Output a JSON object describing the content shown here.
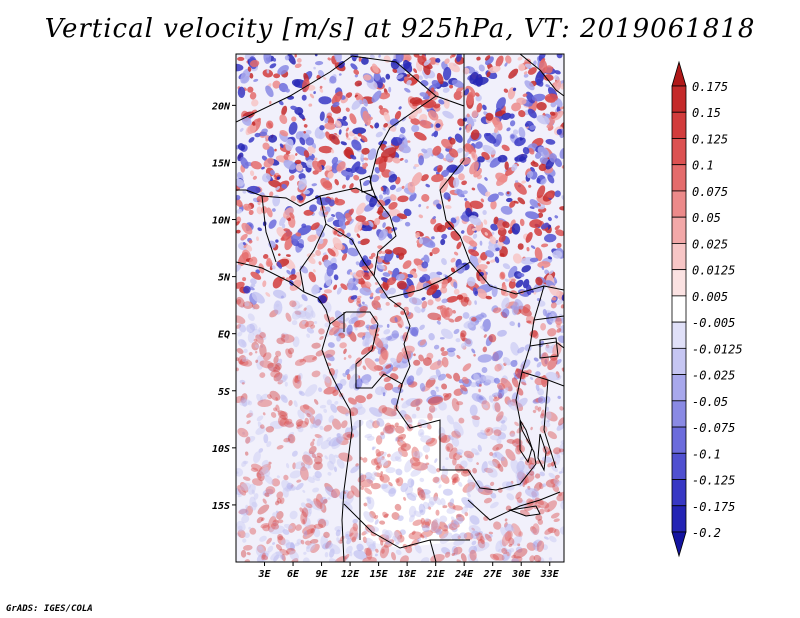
{
  "title": "Vertical velocity [m/s] at 925hPa, VT: 2019061818",
  "credit": "GrADS: IGES/COLA",
  "map": {
    "lon_range": [
      0,
      34.5
    ],
    "lat_range": [
      -20,
      24.5
    ],
    "lat_labels": [
      {
        "text": "20N",
        "lat": 20
      },
      {
        "text": "15N",
        "lat": 15
      },
      {
        "text": "10N",
        "lat": 10
      },
      {
        "text": "5N",
        "lat": 5
      },
      {
        "text": "EQ",
        "lat": 0
      },
      {
        "text": "5S",
        "lat": -5
      },
      {
        "text": "10S",
        "lat": -10
      },
      {
        "text": "15S",
        "lat": -15
      }
    ],
    "lon_labels": [
      {
        "text": "3E",
        "lon": 3
      },
      {
        "text": "6E",
        "lon": 6
      },
      {
        "text": "9E",
        "lon": 9
      },
      {
        "text": "12E",
        "lon": 12
      },
      {
        "text": "15E",
        "lon": 15
      },
      {
        "text": "18E",
        "lon": 18
      },
      {
        "text": "21E",
        "lon": 21
      },
      {
        "text": "24E",
        "lon": 24
      },
      {
        "text": "27E",
        "lon": 27
      },
      {
        "text": "30E",
        "lon": 30
      },
      {
        "text": "33E",
        "lon": 33
      }
    ]
  },
  "colorbar": {
    "levels": [
      "0.175",
      "0.15",
      "0.125",
      "0.1",
      "0.075",
      "0.05",
      "0.025",
      "0.0125",
      "0.005",
      "-0.005",
      "-0.0125",
      "-0.025",
      "-0.05",
      "-0.075",
      "-0.1",
      "-0.125",
      "-0.175",
      "-0.2"
    ],
    "colors": [
      "#b01818",
      "#c42a2a",
      "#d23c3c",
      "#dc5252",
      "#e46c6c",
      "#ec8a8a",
      "#f2a8a8",
      "#f7c6c6",
      "#fbe2e2",
      "#ffffff",
      "#e0e0f8",
      "#c6c6f2",
      "#a8a8ec",
      "#8a8ae4",
      "#6c6cdc",
      "#5050d0",
      "#3838c4",
      "#2424b4",
      "#1414a0"
    ]
  }
}
